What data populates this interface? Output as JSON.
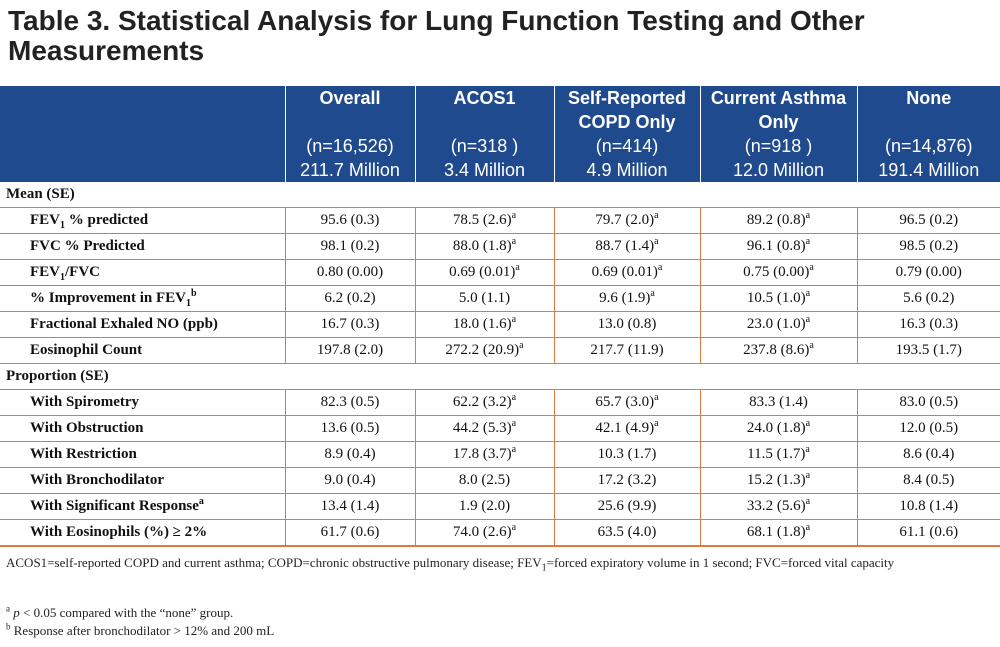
{
  "title": "Table 3. Statistical Analysis for Lung Function Testing and Other Measurements",
  "columns": [
    {
      "name": "Overall",
      "n": "(n=16,526)",
      "millions": "211.7 Million"
    },
    {
      "name": "ACOS1",
      "n": "(n=318 )",
      "millions": "3.4 Million"
    },
    {
      "name": "Self-Reported COPD Only",
      "n": "(n=414)",
      "millions": "4.9 Million"
    },
    {
      "name": "Current Asthma Only",
      "n": "(n=918 )",
      "millions": "12.0 Million"
    },
    {
      "name": "None",
      "n": "(n=14,876)",
      "millions": "191.4 Million"
    }
  ],
  "sections": {
    "mean": "Mean (SE)",
    "proportion": "Proportion (SE)"
  },
  "labels": {
    "fev1_pred_a": "FEV",
    "fev1_pred_sub": "1",
    "fev1_pred_b": " % predicted",
    "fvc_pred": "FVC % Predicted",
    "fev1fvc_a": "FEV",
    "fev1fvc_sub": "1",
    "fev1fvc_b": "/FVC",
    "improve_a": "% Improvement in FEV",
    "improve_sub": "1",
    "improve_sup": "b",
    "feno": "Fractional Exhaled NO (ppb)",
    "eos": "Eosinophil Count",
    "spiro": "With Spirometry",
    "obstr": "With Obstruction",
    "restr": "With Restriction",
    "broncho": "With Bronchodilator",
    "sigresp": "With Significant Response",
    "sigresp_sup": "a",
    "eospct": "With Eosinophils (%) ≥ 2%"
  },
  "rows": {
    "fev1_pred": [
      [
        "95.6 (0.3)",
        ""
      ],
      [
        "78.5 (2.6)",
        "a"
      ],
      [
        "79.7 (2.0)",
        "a"
      ],
      [
        "89.2 (0.8)",
        "a"
      ],
      [
        "96.5 (0.2)",
        ""
      ]
    ],
    "fvc_pred": [
      [
        "98.1 (0.2)",
        ""
      ],
      [
        "88.0 (1.8)",
        "a"
      ],
      [
        "88.7 (1.4)",
        "a"
      ],
      [
        "96.1 (0.8)",
        "a"
      ],
      [
        "98.5 (0.2)",
        ""
      ]
    ],
    "fev1fvc": [
      [
        "0.80 (0.00)",
        ""
      ],
      [
        "0.69 (0.01)",
        "a"
      ],
      [
        "0.69 (0.01)",
        "a"
      ],
      [
        "0.75 (0.00)",
        "a"
      ],
      [
        "0.79 (0.00)",
        ""
      ]
    ],
    "improve": [
      [
        "6.2 (0.2)",
        ""
      ],
      [
        "5.0 (1.1)",
        ""
      ],
      [
        "9.6 (1.9)",
        "a"
      ],
      [
        "10.5 (1.0)",
        "a"
      ],
      [
        "5.6 (0.2)",
        ""
      ]
    ],
    "feno": [
      [
        "16.7 (0.3)",
        ""
      ],
      [
        "18.0 (1.6)",
        "a"
      ],
      [
        "13.0 (0.8)",
        ""
      ],
      [
        "23.0 (1.0)",
        "a"
      ],
      [
        "16.3 (0.3)",
        ""
      ]
    ],
    "eos": [
      [
        "197.8 (2.0)",
        ""
      ],
      [
        "272.2 (20.9)",
        "a"
      ],
      [
        "217.7 (11.9)",
        ""
      ],
      [
        "237.8 (8.6)",
        "a"
      ],
      [
        "193.5 (1.7)",
        ""
      ]
    ],
    "spiro": [
      [
        "82.3 (0.5)",
        ""
      ],
      [
        "62.2 (3.2)",
        "a"
      ],
      [
        "65.7 (3.0)",
        "a"
      ],
      [
        "83.3 (1.4)",
        ""
      ],
      [
        "83.0 (0.5)",
        ""
      ]
    ],
    "obstr": [
      [
        "13.6 (0.5)",
        ""
      ],
      [
        "44.2 (5.3)",
        "a"
      ],
      [
        "42.1 (4.9)",
        "a"
      ],
      [
        "24.0 (1.8)",
        "a"
      ],
      [
        "12.0 (0.5)",
        ""
      ]
    ],
    "restr": [
      [
        "8.9 (0.4)",
        ""
      ],
      [
        "17.8 (3.7)",
        "a"
      ],
      [
        "10.3 (1.7)",
        ""
      ],
      [
        "11.5 (1.7)",
        "a"
      ],
      [
        "8.6 (0.4)",
        ""
      ]
    ],
    "broncho": [
      [
        "9.0 (0.4)",
        ""
      ],
      [
        "8.0 (2.5)",
        ""
      ],
      [
        "17.2 (3.2)",
        ""
      ],
      [
        "15.2 (1.3)",
        "a"
      ],
      [
        "8.4 (0.5)",
        ""
      ]
    ],
    "sigresp": [
      [
        "13.4 (1.4)",
        ""
      ],
      [
        "1.9 (2.0)",
        ""
      ],
      [
        "25.6 (9.9)",
        ""
      ],
      [
        "33.2 (5.6)",
        "a"
      ],
      [
        "10.8 (1.4)",
        ""
      ]
    ],
    "eospct": [
      [
        "61.7 (0.6)",
        ""
      ],
      [
        "74.0 (2.6)",
        "a"
      ],
      [
        "63.5 (4.0)",
        ""
      ],
      [
        "68.1 (1.8)",
        "a"
      ],
      [
        "61.1 (0.6)",
        ""
      ]
    ]
  },
  "notes": {
    "abbrev_a": "ACOS1=self-reported COPD and current asthma; COPD=chronic obstructive pulmonary disease; FEV",
    "abbrev_sub": "1",
    "abbrev_b": "=forced expiratory volume in 1 second; FVC=forced vital capacity",
    "fn_a_mark": "a",
    "fn_a_p": "p",
    "fn_a_text": " < 0.05 compared with the “none” group.",
    "fn_b_mark": "b",
    "fn_b_text": " Response after bronchodilator > 12% and 200 mL"
  }
}
